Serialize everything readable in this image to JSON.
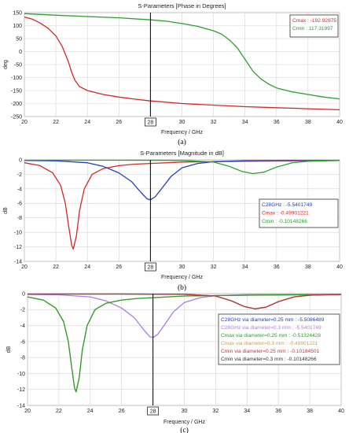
{
  "chart_data": [
    {
      "type": "line",
      "title": "S-Parameters [Phase in Degrees]",
      "xlabel": "Frequency / GHz",
      "ylabel": "deg",
      "xlim": [
        20,
        40
      ],
      "ylim": [
        -250,
        150
      ],
      "xticks": [
        "20",
        "22",
        "24",
        "26",
        "28",
        "30",
        "32",
        "34",
        "36",
        "38",
        "40"
      ],
      "yticks": [
        "150",
        "100",
        "50",
        "0",
        "-50",
        "-100",
        "-150",
        "-200",
        "-250"
      ],
      "marker": {
        "x": 28,
        "label": "28"
      },
      "grid": true,
      "legend_position": "top-right",
      "legend": [
        {
          "text": "Cmax : -192.92875",
          "color": "#d62728"
        },
        {
          "text": "Cmin : 117.31997",
          "color": "#2ca02c"
        }
      ],
      "caption": "(a)",
      "series": [
        {
          "color": "#d62728",
          "x": [
            20,
            20.5,
            21,
            21.5,
            22,
            22.4,
            22.8,
            23,
            23.2,
            23.5,
            24,
            25,
            26,
            27,
            28,
            29,
            30,
            32,
            34,
            36,
            38,
            40
          ],
          "y": [
            133,
            125,
            110,
            90,
            60,
            20,
            -40,
            -80,
            -110,
            -135,
            -150,
            -165,
            -175,
            -183,
            -190,
            -195,
            -200,
            -206,
            -212,
            -216,
            -220,
            -224
          ]
        },
        {
          "color": "#2ca02c",
          "x": [
            20,
            22,
            24,
            26,
            28,
            29,
            30,
            31,
            32,
            32.5,
            33,
            33.5,
            34,
            34.5,
            35,
            35.5,
            36,
            37,
            38,
            39,
            40
          ],
          "y": [
            146,
            140,
            135,
            130,
            122,
            117,
            108,
            97,
            80,
            68,
            45,
            15,
            -30,
            -75,
            -105,
            -125,
            -140,
            -155,
            -165,
            -175,
            -182
          ]
        }
      ]
    },
    {
      "type": "line",
      "title": "S-Parameters [Magnitude in dB]",
      "xlabel": "Frequency / GHz",
      "ylabel": "dB",
      "xlim": [
        20,
        40
      ],
      "ylim": [
        -14,
        0
      ],
      "xticks": [
        "20",
        "22",
        "24",
        "26",
        "28",
        "30",
        "32",
        "34",
        "36",
        "38",
        "40"
      ],
      "yticks": [
        "0",
        "-2",
        "-4",
        "-6",
        "-8",
        "-10",
        "-12",
        "-14"
      ],
      "marker": {
        "x": 28,
        "label": "28"
      },
      "grid": true,
      "legend_position": "right",
      "legend": [
        {
          "text": "C28GHz : -5.5401749",
          "color": "#1f3fbf"
        },
        {
          "text": "Cmax : -0.49901221",
          "color": "#d62728"
        },
        {
          "text": "Cmin : -0.10148266",
          "color": "#2ca02c"
        }
      ],
      "caption": "(b)",
      "series": [
        {
          "color": "#d62728",
          "x": [
            20,
            21,
            21.8,
            22.3,
            22.6,
            22.8,
            23,
            23.1,
            23.3,
            23.5,
            23.8,
            24.3,
            25,
            26,
            27,
            28,
            30,
            34,
            40
          ],
          "y": [
            -0.4,
            -0.8,
            -1.8,
            -3.5,
            -6,
            -9,
            -11.8,
            -12.3,
            -10.5,
            -7,
            -4,
            -2,
            -1.2,
            -0.8,
            -0.6,
            -0.5,
            -0.3,
            -0.2,
            -0.1
          ]
        },
        {
          "color": "#1f3fbf",
          "x": [
            20,
            22,
            24,
            25,
            26,
            26.8,
            27.4,
            27.8,
            28,
            28.3,
            28.7,
            29.3,
            30,
            31,
            32,
            34,
            37,
            40
          ],
          "y": [
            -0.1,
            -0.15,
            -0.4,
            -0.9,
            -1.8,
            -3,
            -4.5,
            -5.4,
            -5.5,
            -5.1,
            -4,
            -2.3,
            -1.1,
            -0.5,
            -0.25,
            -0.12,
            -0.1,
            -0.1
          ]
        },
        {
          "color": "#2ca02c",
          "x": [
            20,
            26,
            30,
            32,
            33,
            33.8,
            34.5,
            35.2,
            36,
            37,
            38,
            40
          ],
          "y": [
            -0.05,
            -0.05,
            -0.08,
            -0.3,
            -0.9,
            -1.6,
            -1.9,
            -1.7,
            -1.0,
            -0.4,
            -0.2,
            -0.1
          ]
        }
      ]
    },
    {
      "type": "line",
      "title": "",
      "xlabel": "Frequency / GHz",
      "ylabel": "dB",
      "xlim": [
        20,
        40
      ],
      "ylim": [
        -14,
        0
      ],
      "xticks": [
        "20",
        "22",
        "24",
        "26",
        "28",
        "30",
        "32",
        "34",
        "36",
        "38",
        "40"
      ],
      "yticks": [
        "0",
        "-2",
        "-4",
        "-6",
        "-8",
        "-10",
        "-12",
        "-14"
      ],
      "marker": {
        "x": 28,
        "label": "28"
      },
      "grid": true,
      "legend_position": "right",
      "legend": [
        {
          "text": "C28GHz via diameter=0.25 mm : -5.5086489",
          "color": "#1f3fbf"
        },
        {
          "text": "C28GHz via diameter=0.3 mm : -5.5401749",
          "color": "#b07be0"
        },
        {
          "text": "Cmax via diameter=0.25 mm : -0.51324428",
          "color": "#2ca02c"
        },
        {
          "text": "Cmax via diameter=0.3 mm : -0.49901221",
          "color": "#c8a050"
        },
        {
          "text": "Cmin via diameter=0.25 mm : -0.10184501",
          "color": "#c03a3a"
        },
        {
          "text": "Cmin via diameter=0.3 mm : -0.10148266",
          "color": "#333333"
        }
      ],
      "caption": "(c)",
      "series": [
        {
          "color": "#b07be0",
          "x": [
            20,
            22,
            24,
            25,
            26,
            26.8,
            27.4,
            27.8,
            28,
            28.3,
            28.7,
            29.3,
            30,
            31,
            32,
            34,
            37,
            40
          ],
          "y": [
            -0.1,
            -0.15,
            -0.4,
            -0.9,
            -1.8,
            -3,
            -4.5,
            -5.4,
            -5.5,
            -5.1,
            -4,
            -2.3,
            -1.1,
            -0.5,
            -0.25,
            -0.12,
            -0.1,
            -0.1
          ]
        },
        {
          "color": "#c8a050",
          "x": [
            20,
            21,
            21.8,
            22.3,
            22.6,
            22.8,
            23,
            23.1,
            23.3,
            23.5,
            23.8,
            24.3,
            25,
            26,
            27,
            28,
            30,
            34,
            40
          ],
          "y": [
            -0.4,
            -0.8,
            -1.8,
            -3.5,
            -6,
            -9,
            -11.8,
            -12.3,
            -10.5,
            -7,
            -4,
            -2,
            -1.2,
            -0.8,
            -0.6,
            -0.5,
            -0.3,
            -0.2,
            -0.1
          ]
        },
        {
          "color": "#2ca02c",
          "x": [
            20,
            21,
            21.8,
            22.3,
            22.6,
            22.8,
            23,
            23.1,
            23.3,
            23.5,
            23.8,
            24.3,
            25,
            26,
            27,
            28,
            30,
            34,
            40
          ],
          "y": [
            -0.4,
            -0.8,
            -1.8,
            -3.5,
            -6,
            -9,
            -11.8,
            -12.3,
            -10.5,
            -7,
            -4,
            -2,
            -1.2,
            -0.8,
            -0.6,
            -0.5,
            -0.3,
            -0.2,
            -0.1
          ]
        },
        {
          "color": "#333333",
          "x": [
            20,
            26,
            30,
            32,
            33,
            33.8,
            34.5,
            35.2,
            36,
            37,
            38,
            40
          ],
          "y": [
            -0.05,
            -0.05,
            -0.08,
            -0.3,
            -0.9,
            -1.6,
            -1.9,
            -1.7,
            -1.0,
            -0.4,
            -0.2,
            -0.1
          ]
        },
        {
          "color": "#c03a3a",
          "x": [
            20,
            26,
            30,
            32,
            33,
            33.8,
            34.5,
            35.2,
            36,
            37,
            38,
            40
          ],
          "y": [
            -0.05,
            -0.05,
            -0.08,
            -0.3,
            -0.9,
            -1.6,
            -1.9,
            -1.7,
            -1.0,
            -0.4,
            -0.2,
            -0.1
          ]
        }
      ]
    }
  ]
}
